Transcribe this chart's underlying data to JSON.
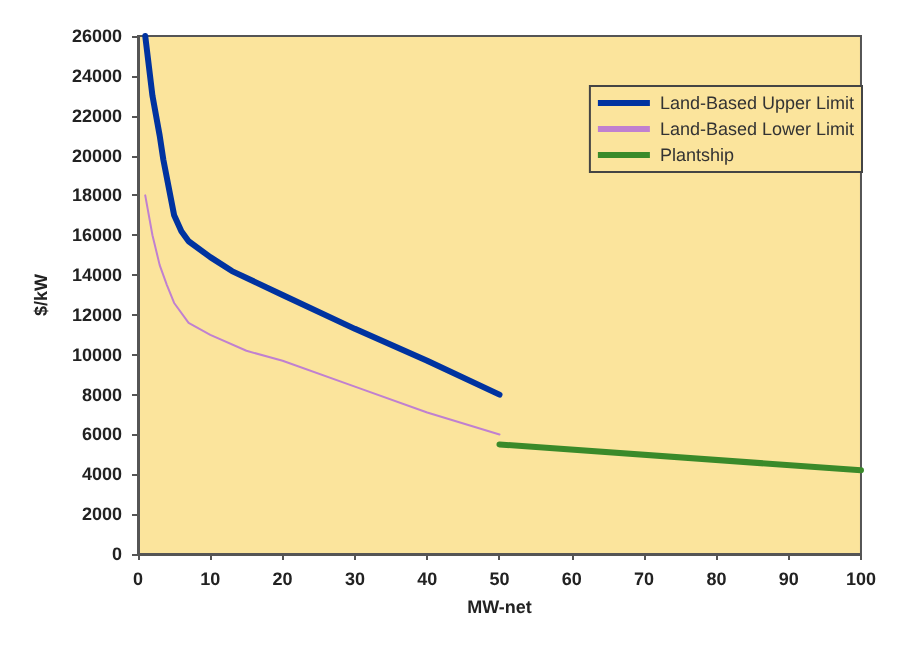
{
  "chart_data": {
    "type": "line",
    "xlabel": "MW-net",
    "ylabel": "$/kW",
    "xlim": [
      0,
      100
    ],
    "xticks": [
      0,
      10,
      20,
      30,
      40,
      50,
      60,
      70,
      80,
      90,
      100
    ],
    "ylim": [
      0,
      26000
    ],
    "yticks": [
      0,
      2000,
      4000,
      6000,
      8000,
      10000,
      12000,
      14000,
      16000,
      18000,
      20000,
      22000,
      24000,
      26000
    ],
    "grid": false,
    "legend": "top right",
    "marker": "none",
    "line_style": "solid",
    "series": [
      {
        "name": "Land-Based Upper Limit",
        "color": "#0033a0",
        "x": [
          1,
          2,
          3,
          3.5,
          5,
          6,
          7,
          10,
          13,
          20,
          30,
          40,
          50
        ],
        "values": [
          26000,
          23000,
          21000,
          19800,
          17000,
          16200,
          15700,
          14900,
          14200,
          13000,
          11300,
          9700,
          8000
        ]
      },
      {
        "name": "Land-Based Lower Limit",
        "color": "#c080d0",
        "x": [
          1,
          2,
          3,
          4,
          5,
          7,
          10,
          15,
          20,
          30,
          40,
          50
        ],
        "values": [
          18000,
          16000,
          14500,
          13500,
          12600,
          11600,
          11000,
          10200,
          9700,
          8400,
          7100,
          6000
        ]
      },
      {
        "name": "Plantship",
        "color": "#3a8a2a",
        "x": [
          50,
          100
        ],
        "values": [
          5500,
          4200
        ]
      }
    ]
  }
}
